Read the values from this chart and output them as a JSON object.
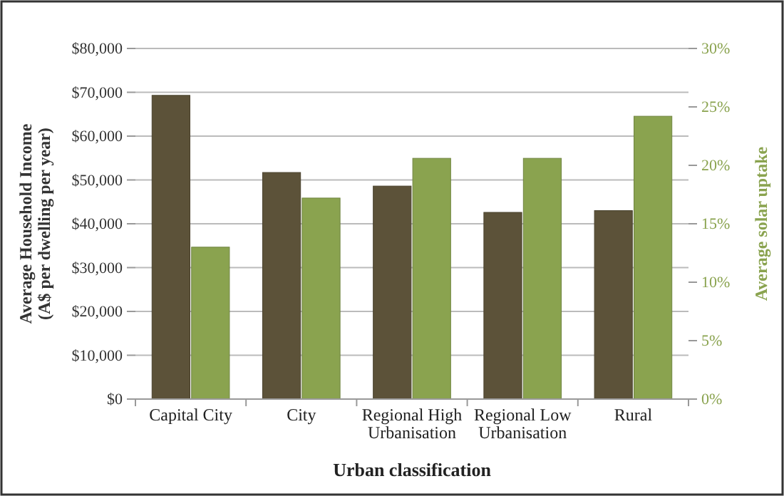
{
  "chart_data": {
    "type": "bar",
    "categories": [
      "Capital City",
      "City",
      "Regional High Urbanisation",
      "Regional Low Urbanisation",
      "Rural"
    ],
    "xlabel": "Urban classification",
    "ylabel": "Average Household Income (A$ per dwelling per year)",
    "y2label": "Average solar uptake",
    "series": [
      {
        "color": "#5c5239",
        "values": [
          69300,
          51700,
          48600,
          42600,
          43000
        ]
      },
      {
        "color": "#8aa34f",
        "axis": "y2",
        "values": [
          13.0,
          17.2,
          20.6,
          20.6,
          24.2
        ]
      }
    ],
    "ylim": [
      0,
      80000
    ],
    "yticks": [
      {
        "value": 0,
        "label": "$0"
      },
      {
        "value": 10000,
        "label": "$10,000"
      },
      {
        "value": 20000,
        "label": "$20,000"
      },
      {
        "value": 30000,
        "label": "$30,000"
      },
      {
        "value": 40000,
        "label": "$40,000"
      },
      {
        "value": 50000,
        "label": "$50,000"
      },
      {
        "value": 60000,
        "label": "$60,000"
      },
      {
        "value": 70000,
        "label": "$70,000"
      },
      {
        "value": 80000,
        "label": "$80,000"
      }
    ],
    "y2lim": [
      0,
      30
    ],
    "y2ticks": [
      {
        "value": 0,
        "label": "0%"
      },
      {
        "value": 5,
        "label": "5%"
      },
      {
        "value": 10,
        "label": "10%"
      },
      {
        "value": 15,
        "label": "15%"
      },
      {
        "value": 20,
        "label": "20%"
      },
      {
        "value": 25,
        "label": "25%"
      },
      {
        "value": 30,
        "label": "30%"
      }
    ],
    "grid": "y"
  }
}
